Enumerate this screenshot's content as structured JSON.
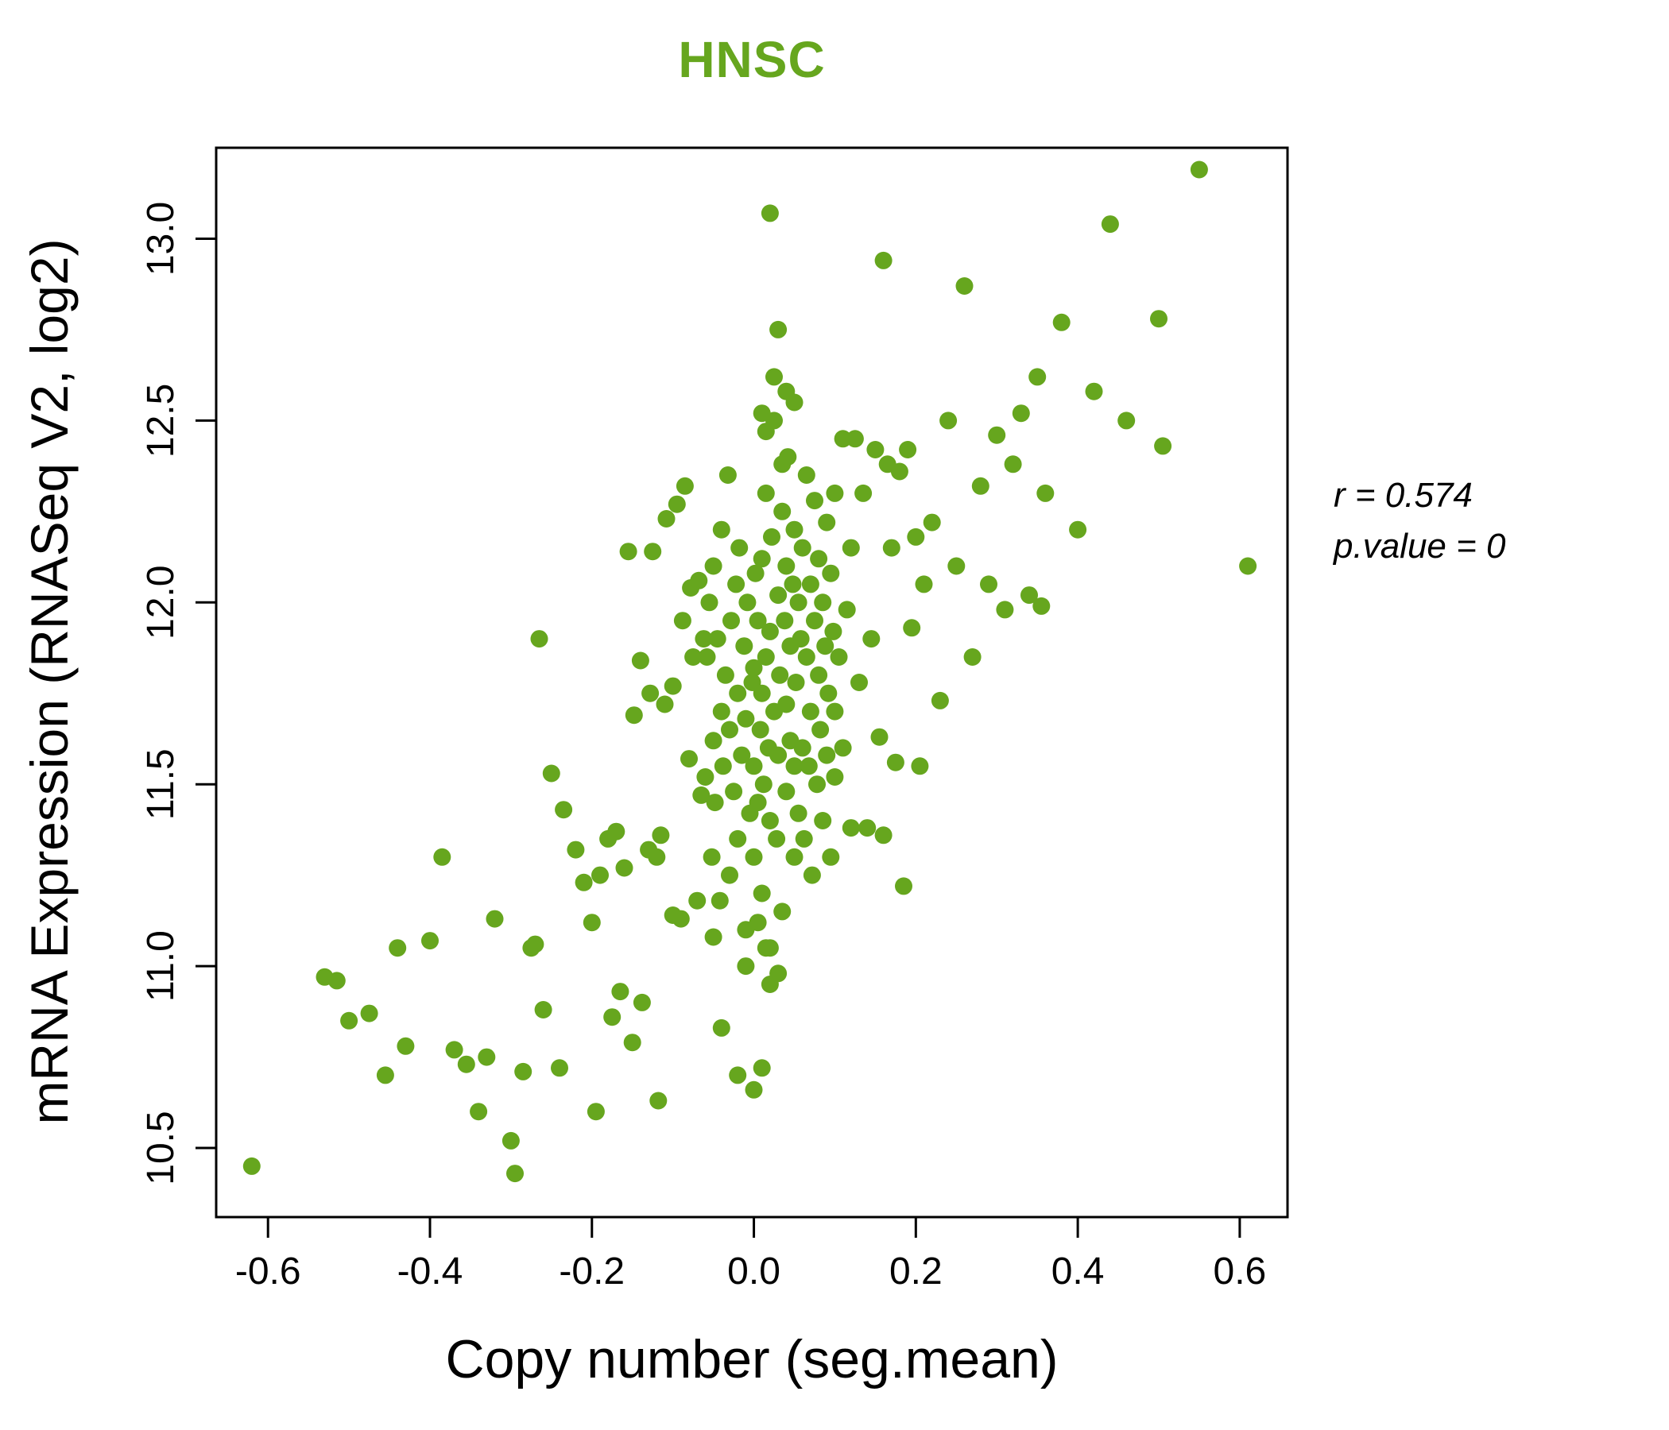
{
  "title": "HNSC",
  "annotation": {
    "r_label": "r = 0.574",
    "p_label": "p.value = 0"
  },
  "chart_data": {
    "type": "scatter",
    "title": "HNSC",
    "xlabel": "Copy number (seg.mean)",
    "ylabel": "mRNA Expression (RNASeq V2, log2)",
    "xlim": [
      -0.664,
      0.659
    ],
    "ylim": [
      10.31,
      13.25
    ],
    "xticks": [
      -0.6,
      -0.4,
      -0.2,
      0.0,
      0.2,
      0.4,
      0.6
    ],
    "xtick_labels": [
      "-0.6",
      "-0.4",
      "-0.2",
      "0.0",
      "0.2",
      "0.4",
      "0.6"
    ],
    "yticks": [
      10.5,
      11.0,
      11.5,
      12.0,
      12.5,
      13.0
    ],
    "ytick_labels": [
      "10.5",
      "11.0",
      "11.5",
      "12.0",
      "12.5",
      "13.0"
    ],
    "grid": false,
    "legend": "none",
    "point_color": "#66a61e",
    "title_color": "#66a61e",
    "stats": {
      "r": 0.574,
      "p_value": 0
    },
    "points": [
      [
        -0.62,
        10.45
      ],
      [
        -0.53,
        10.97
      ],
      [
        -0.515,
        10.96
      ],
      [
        -0.5,
        10.85
      ],
      [
        -0.475,
        10.87
      ],
      [
        -0.455,
        10.7
      ],
      [
        -0.44,
        11.05
      ],
      [
        -0.43,
        10.78
      ],
      [
        -0.4,
        11.07
      ],
      [
        -0.385,
        11.3
      ],
      [
        -0.37,
        10.77
      ],
      [
        -0.355,
        10.73
      ],
      [
        -0.34,
        10.6
      ],
      [
        -0.33,
        10.75
      ],
      [
        -0.32,
        11.13
      ],
      [
        -0.3,
        10.52
      ],
      [
        -0.295,
        10.43
      ],
      [
        -0.285,
        10.71
      ],
      [
        -0.275,
        11.05
      ],
      [
        -0.27,
        11.06
      ],
      [
        -0.26,
        10.88
      ],
      [
        -0.265,
        11.9
      ],
      [
        -0.25,
        11.53
      ],
      [
        -0.24,
        10.72
      ],
      [
        -0.235,
        11.43
      ],
      [
        -0.22,
        11.32
      ],
      [
        -0.21,
        11.23
      ],
      [
        -0.2,
        11.12
      ],
      [
        -0.195,
        10.6
      ],
      [
        -0.19,
        11.25
      ],
      [
        -0.18,
        11.35
      ],
      [
        -0.175,
        10.86
      ],
      [
        -0.17,
        11.37
      ],
      [
        -0.165,
        10.93
      ],
      [
        -0.16,
        11.27
      ],
      [
        -0.155,
        12.14
      ],
      [
        -0.15,
        10.79
      ],
      [
        -0.148,
        11.69
      ],
      [
        -0.14,
        11.84
      ],
      [
        -0.138,
        10.9
      ],
      [
        -0.13,
        11.32
      ],
      [
        -0.128,
        11.75
      ],
      [
        -0.125,
        12.14
      ],
      [
        -0.12,
        11.3
      ],
      [
        -0.118,
        10.63
      ],
      [
        -0.115,
        11.36
      ],
      [
        -0.11,
        11.72
      ],
      [
        -0.108,
        12.23
      ],
      [
        -0.1,
        11.14
      ],
      [
        -0.1,
        11.77
      ],
      [
        -0.095,
        12.27
      ],
      [
        -0.09,
        11.13
      ],
      [
        -0.088,
        11.95
      ],
      [
        -0.085,
        12.32
      ],
      [
        -0.08,
        11.57
      ],
      [
        -0.078,
        12.04
      ],
      [
        -0.075,
        11.85
      ],
      [
        -0.07,
        11.18
      ],
      [
        -0.068,
        12.06
      ],
      [
        -0.065,
        11.47
      ],
      [
        -0.062,
        11.9
      ],
      [
        -0.06,
        11.52
      ],
      [
        -0.058,
        11.85
      ],
      [
        -0.055,
        12.0
      ],
      [
        -0.052,
        11.3
      ],
      [
        -0.05,
        11.62
      ],
      [
        -0.05,
        12.1
      ],
      [
        -0.048,
        11.45
      ],
      [
        -0.045,
        11.9
      ],
      [
        -0.042,
        11.18
      ],
      [
        -0.04,
        11.7
      ],
      [
        -0.04,
        12.2
      ],
      [
        -0.038,
        11.55
      ],
      [
        -0.035,
        11.8
      ],
      [
        -0.032,
        12.35
      ],
      [
        -0.03,
        11.25
      ],
      [
        -0.03,
        11.65
      ],
      [
        -0.028,
        11.95
      ],
      [
        -0.025,
        11.48
      ],
      [
        -0.022,
        12.05
      ],
      [
        -0.02,
        11.35
      ],
      [
        -0.02,
        11.75
      ],
      [
        -0.018,
        12.15
      ],
      [
        -0.015,
        11.58
      ],
      [
        -0.012,
        11.88
      ],
      [
        -0.01,
        11.1
      ],
      [
        -0.01,
        11.68
      ],
      [
        -0.008,
        12.0
      ],
      [
        -0.005,
        11.42
      ],
      [
        -0.002,
        11.78
      ],
      [
        -0.04,
        10.83
      ],
      [
        -0.02,
        10.7
      ],
      [
        -0.01,
        11.0
      ],
      [
        0.0,
        10.66
      ],
      [
        0.01,
        10.72
      ],
      [
        0.015,
        11.05
      ],
      [
        0.02,
        10.95
      ],
      [
        0.03,
        10.98
      ],
      [
        -0.05,
        11.08
      ],
      [
        0.005,
        11.12
      ],
      [
        0.02,
        13.07
      ],
      [
        0.01,
        12.52
      ],
      [
        0.025,
        12.62
      ],
      [
        0.03,
        12.75
      ],
      [
        0.04,
        12.58
      ],
      [
        0.05,
        12.55
      ],
      [
        0.015,
        12.47
      ],
      [
        0.035,
        12.38
      ],
      [
        0.0,
        11.3
      ],
      [
        0.0,
        11.55
      ],
      [
        0.0,
        11.82
      ],
      [
        0.002,
        12.08
      ],
      [
        0.005,
        11.45
      ],
      [
        0.005,
        11.95
      ],
      [
        0.008,
        11.65
      ],
      [
        0.01,
        11.2
      ],
      [
        0.01,
        11.75
      ],
      [
        0.01,
        12.12
      ],
      [
        0.012,
        11.5
      ],
      [
        0.015,
        11.85
      ],
      [
        0.015,
        12.3
      ],
      [
        0.018,
        11.6
      ],
      [
        0.02,
        11.05
      ],
      [
        0.02,
        11.4
      ],
      [
        0.02,
        11.92
      ],
      [
        0.022,
        12.18
      ],
      [
        0.025,
        11.7
      ],
      [
        0.025,
        12.5
      ],
      [
        0.028,
        11.35
      ],
      [
        0.03,
        11.58
      ],
      [
        0.03,
        12.02
      ],
      [
        0.032,
        11.8
      ],
      [
        0.035,
        12.25
      ],
      [
        0.035,
        11.15
      ],
      [
        0.038,
        11.95
      ],
      [
        0.04,
        11.48
      ],
      [
        0.04,
        11.72
      ],
      [
        0.04,
        12.1
      ],
      [
        0.042,
        12.4
      ],
      [
        0.045,
        11.62
      ],
      [
        0.045,
        11.88
      ],
      [
        0.048,
        12.05
      ],
      [
        0.05,
        11.3
      ],
      [
        0.05,
        11.55
      ],
      [
        0.05,
        12.2
      ],
      [
        0.052,
        11.78
      ],
      [
        0.055,
        12.0
      ],
      [
        0.055,
        11.42
      ],
      [
        0.058,
        11.9
      ],
      [
        0.06,
        11.6
      ],
      [
        0.06,
        12.15
      ],
      [
        0.062,
        11.35
      ],
      [
        0.065,
        11.85
      ],
      [
        0.065,
        12.35
      ],
      [
        0.068,
        11.55
      ],
      [
        0.07,
        11.7
      ],
      [
        0.07,
        12.05
      ],
      [
        0.072,
        11.25
      ],
      [
        0.075,
        11.95
      ],
      [
        0.075,
        12.28
      ],
      [
        0.078,
        11.5
      ],
      [
        0.08,
        11.8
      ],
      [
        0.08,
        12.12
      ],
      [
        0.082,
        11.65
      ],
      [
        0.085,
        11.4
      ],
      [
        0.085,
        12.0
      ],
      [
        0.088,
        11.88
      ],
      [
        0.09,
        11.58
      ],
      [
        0.09,
        12.22
      ],
      [
        0.092,
        11.75
      ],
      [
        0.095,
        11.3
      ],
      [
        0.095,
        12.08
      ],
      [
        0.098,
        11.92
      ],
      [
        0.1,
        11.52
      ],
      [
        0.1,
        11.7
      ],
      [
        0.1,
        12.3
      ],
      [
        0.105,
        11.85
      ],
      [
        0.11,
        12.45
      ],
      [
        0.11,
        11.6
      ],
      [
        0.115,
        11.98
      ],
      [
        0.12,
        11.38
      ],
      [
        0.12,
        12.15
      ],
      [
        0.125,
        12.45
      ],
      [
        0.13,
        11.78
      ],
      [
        0.135,
        12.3
      ],
      [
        0.14,
        11.38
      ],
      [
        0.145,
        11.9
      ],
      [
        0.15,
        12.42
      ],
      [
        0.155,
        11.63
      ],
      [
        0.16,
        12.94
      ],
      [
        0.16,
        11.36
      ],
      [
        0.165,
        12.38
      ],
      [
        0.17,
        12.15
      ],
      [
        0.175,
        11.56
      ],
      [
        0.18,
        12.36
      ],
      [
        0.185,
        11.22
      ],
      [
        0.19,
        12.42
      ],
      [
        0.195,
        11.93
      ],
      [
        0.2,
        12.18
      ],
      [
        0.205,
        11.55
      ],
      [
        0.21,
        12.05
      ],
      [
        0.22,
        12.22
      ],
      [
        0.23,
        11.73
      ],
      [
        0.24,
        12.5
      ],
      [
        0.25,
        12.1
      ],
      [
        0.26,
        12.87
      ],
      [
        0.27,
        11.85
      ],
      [
        0.28,
        12.32
      ],
      [
        0.29,
        12.05
      ],
      [
        0.3,
        12.46
      ],
      [
        0.31,
        11.98
      ],
      [
        0.32,
        12.38
      ],
      [
        0.33,
        12.52
      ],
      [
        0.34,
        12.02
      ],
      [
        0.35,
        12.62
      ],
      [
        0.355,
        11.99
      ],
      [
        0.36,
        12.3
      ],
      [
        0.38,
        12.77
      ],
      [
        0.4,
        12.2
      ],
      [
        0.42,
        12.58
      ],
      [
        0.44,
        13.04
      ],
      [
        0.46,
        12.5
      ],
      [
        0.5,
        12.78
      ],
      [
        0.505,
        12.43
      ],
      [
        0.55,
        13.19
      ],
      [
        0.61,
        12.1
      ]
    ]
  }
}
